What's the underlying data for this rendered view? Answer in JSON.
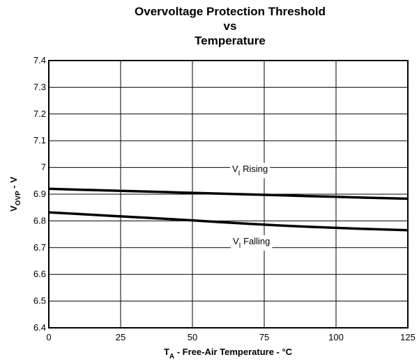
{
  "chart_data": {
    "type": "line",
    "title_lines": [
      "Overvoltage Protection Threshold",
      "vs",
      "Temperature"
    ],
    "xlabel": {
      "main": "T",
      "sub": "A",
      "rest": " - Free-Air Temperature - °C"
    },
    "ylabel": {
      "main": "V",
      "sub": "OVP",
      "rest": " - V"
    },
    "xlim": [
      0,
      125
    ],
    "ylim": [
      6.4,
      7.4
    ],
    "x_ticks": [
      "0",
      "25",
      "50",
      "75",
      "100",
      "125"
    ],
    "y_ticks": [
      "6.4",
      "6.5",
      "6.6",
      "6.7",
      "6.8",
      "6.9",
      "7",
      "7.1",
      "7.2",
      "7.3",
      "7.4"
    ],
    "grid": true,
    "x": [
      0,
      10,
      20,
      30,
      40,
      50,
      60,
      70,
      80,
      90,
      100,
      110,
      125
    ],
    "series": [
      {
        "name": "Rising",
        "label": {
          "main": "V",
          "sub": "I",
          "rest": " Rising"
        },
        "values": [
          6.92,
          6.917,
          6.914,
          6.911,
          6.908,
          6.905,
          6.902,
          6.899,
          6.896,
          6.893,
          6.89,
          6.887,
          6.883
        ]
      },
      {
        "name": "Falling",
        "label": {
          "main": "V",
          "sub": "I",
          "rest": " Falling"
        },
        "values": [
          6.832,
          6.826,
          6.82,
          6.814,
          6.808,
          6.802,
          6.795,
          6.789,
          6.783,
          6.778,
          6.774,
          6.77,
          6.765
        ]
      }
    ]
  }
}
